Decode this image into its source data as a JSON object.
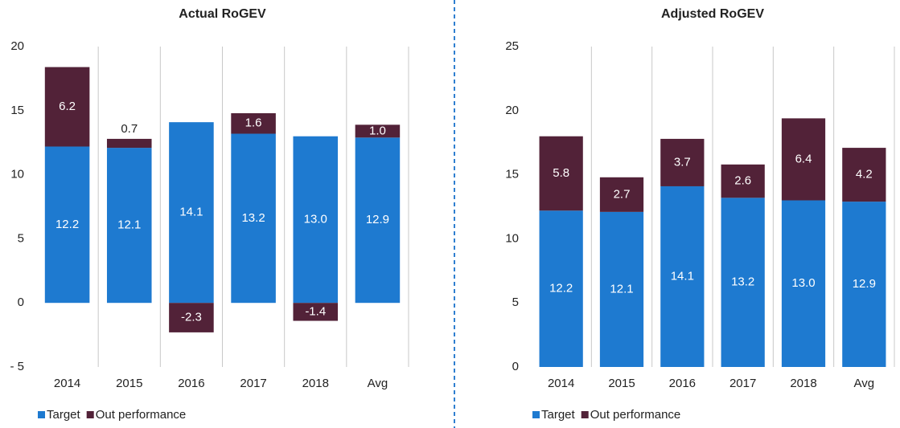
{
  "chart_data": [
    {
      "type": "stacked_bar",
      "title": "Actual RoGEV",
      "categories": [
        "2014",
        "2015",
        "2016",
        "2017",
        "2018",
        "Avg"
      ],
      "series": [
        {
          "name": "Target",
          "color": "#1e7ad0",
          "values": [
            12.2,
            12.1,
            14.1,
            13.2,
            13.0,
            12.9
          ],
          "value_labels": [
            "12.2",
            "12.1",
            "14.1",
            "13.2",
            "13.0",
            "12.9"
          ]
        },
        {
          "name": "Out performance",
          "color": "#522238",
          "values": [
            6.2,
            0.7,
            -2.3,
            1.6,
            -1.4,
            1.0
          ],
          "value_labels": [
            "6.2",
            "0.7",
            "-2.3",
            "1.6",
            "-1.4",
            "1.0"
          ]
        }
      ],
      "ylim": [
        -5,
        20
      ],
      "yticks": [
        {
          "value": -5,
          "label": "- 5"
        },
        0,
        5,
        10,
        15,
        20
      ]
    },
    {
      "type": "stacked_bar",
      "title": "Adjusted RoGEV",
      "categories": [
        "2014",
        "2015",
        "2016",
        "2017",
        "2018",
        "Avg"
      ],
      "series": [
        {
          "name": "Target",
          "color": "#1e7ad0",
          "values": [
            12.2,
            12.1,
            14.1,
            13.2,
            13.0,
            12.9
          ],
          "value_labels": [
            "12.2",
            "12.1",
            "14.1",
            "13.2",
            "13.0",
            "12.9"
          ]
        },
        {
          "name": "Out performance",
          "color": "#522238",
          "values": [
            5.8,
            2.7,
            3.7,
            2.6,
            6.4,
            4.2
          ]
        }
      ],
      "ylim": [
        0,
        25
      ],
      "yticks": [
        0,
        5,
        10,
        15,
        20,
        25
      ]
    }
  ]
}
